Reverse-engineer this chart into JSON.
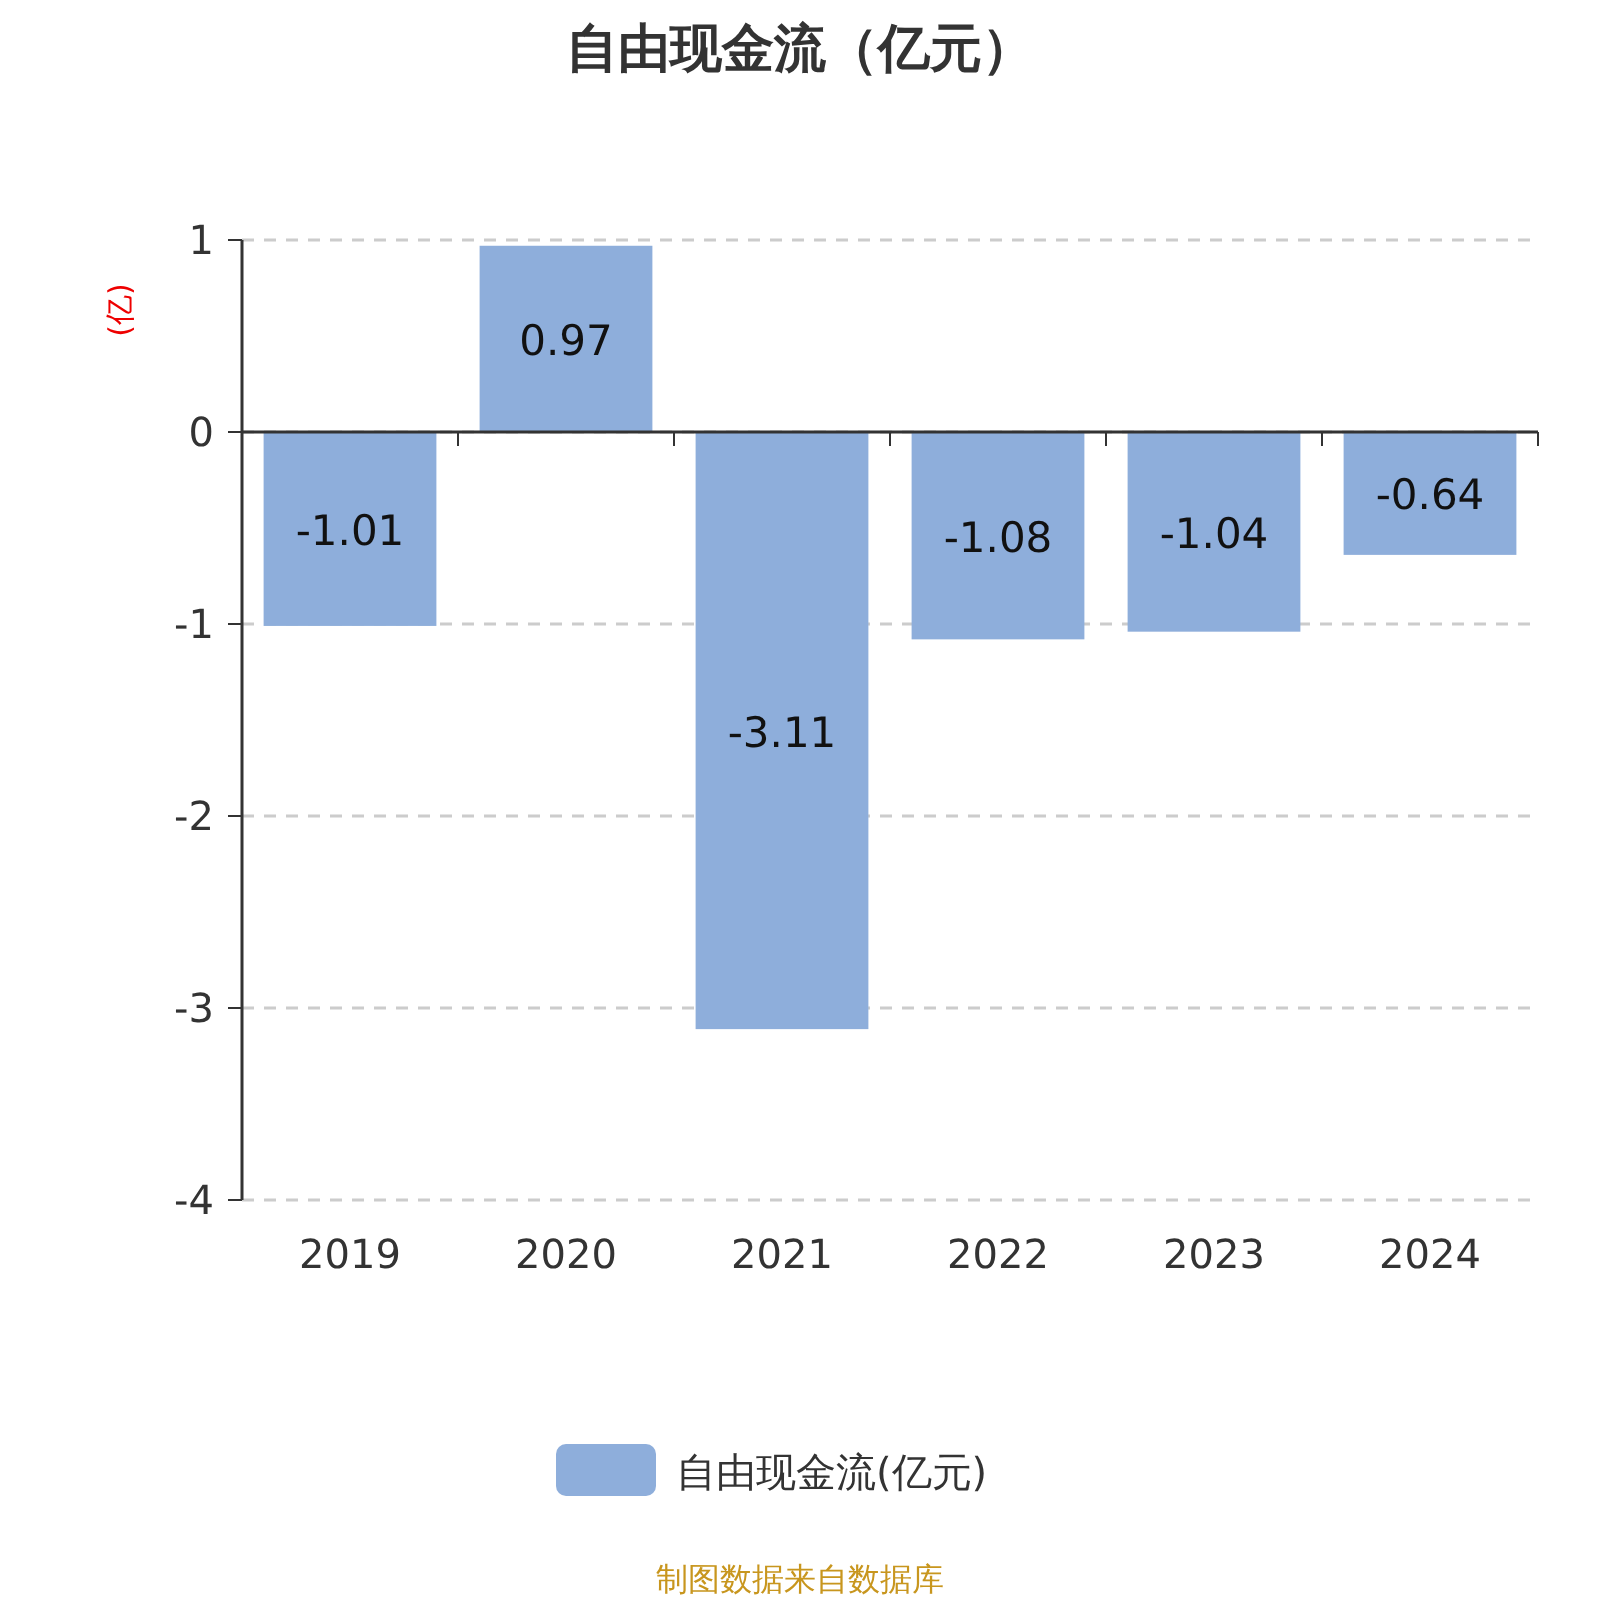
{
  "chart_data": {
    "type": "bar",
    "title": "自由现金流（亿元）",
    "ylabel": "(亿)",
    "categories": [
      "2019",
      "2020",
      "2021",
      "2022",
      "2023",
      "2024"
    ],
    "series": [
      {
        "name": "自由现金流(亿元)",
        "color": "#8eaedb",
        "values": [
          -1.01,
          0.97,
          -3.11,
          -1.08,
          -1.04,
          -0.64
        ]
      }
    ],
    "ylim": [
      -4,
      1
    ],
    "yticks": [
      -4,
      -3,
      -2,
      -1,
      0,
      1
    ],
    "grid": "y",
    "legend": "bottom",
    "data_labels": true,
    "annotations": [
      "制图数据来自数据库"
    ]
  }
}
